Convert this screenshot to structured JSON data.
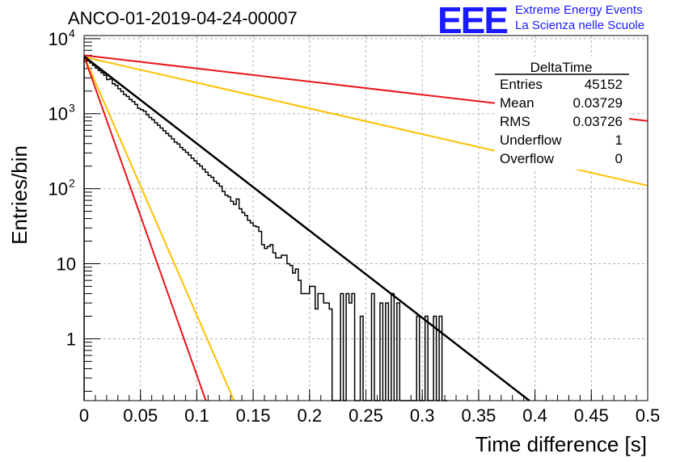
{
  "header": {
    "title": "ANCO-01-2019-04-24-00007",
    "logo_text": "EEE",
    "logo_line1": "Extreme Energy Events",
    "logo_line2": "La Scienza nelle Scuole"
  },
  "stats": {
    "name": "DeltaTime",
    "rows": [
      {
        "label": "Entries",
        "value": "45152"
      },
      {
        "label": "Mean",
        "value": "0.03729"
      },
      {
        "label": "RMS",
        "value": "0.03726"
      },
      {
        "label": "Underflow",
        "value": "1"
      },
      {
        "label": "Overflow",
        "value": "0"
      }
    ]
  },
  "colors": {
    "hist": "#000000",
    "red": "#e8141a",
    "orange": "#ffc000",
    "logo": "#1a1aff"
  },
  "chart_data": {
    "type": "line",
    "title": "ANCO-01-2019-04-24-00007",
    "xlabel": "Time difference [s]",
    "ylabel": "Entries/bin",
    "xlim": [
      0,
      0.5
    ],
    "ylim": [
      0.15,
      11000
    ],
    "yscale": "log",
    "grid": true,
    "xticks": [
      "0",
      "0.05",
      "0.1",
      "0.15",
      "0.2",
      "0.25",
      "0.3",
      "0.35",
      "0.4",
      "0.45",
      "0.5"
    ],
    "yticks": [
      {
        "value": 10000,
        "label": "10",
        "sup": "4"
      },
      {
        "value": 1000,
        "label": "10",
        "sup": "3"
      },
      {
        "value": 100,
        "label": "10",
        "sup": "2"
      },
      {
        "value": 10,
        "label": "10",
        "sup": ""
      },
      {
        "value": 1,
        "label": "1",
        "sup": ""
      }
    ],
    "histogram": {
      "bin_width": 0.0025,
      "start": 0,
      "values": [
        5600,
        5100,
        4750,
        4400,
        4050,
        3750,
        3500,
        3250,
        2850,
        2900,
        2500,
        2380,
        2150,
        1980,
        1800,
        1700,
        1550,
        1450,
        1330,
        1180,
        1130,
        1080,
        970,
        890,
        830,
        760,
        700,
        645,
        592,
        545,
        505,
        462,
        418,
        395,
        355,
        330,
        305,
        282,
        255,
        235,
        215,
        200,
        182,
        166,
        150,
        142,
        126,
        118,
        108,
        92,
        82,
        78,
        68,
        62,
        73,
        54,
        48,
        44,
        38,
        35,
        32,
        31,
        27,
        18,
        16,
        17,
        18,
        14,
        12,
        12,
        13,
        13,
        10,
        9.5,
        7.5,
        8.5,
        6,
        4,
        4,
        4,
        5,
        5,
        2.5,
        4,
        4,
        3,
        3,
        2.5,
        0.1,
        0.1,
        0.1,
        4,
        0.1,
        4,
        3,
        4,
        0.1,
        0.1,
        2,
        0.1,
        0.1,
        0.1,
        4,
        0.1,
        0.1,
        3,
        0.1,
        3,
        0.1,
        4,
        0.1,
        3,
        0.1,
        0.1,
        0.1,
        0.1,
        0.1,
        0.1,
        2,
        0.1,
        0.1,
        2,
        0.1,
        0.1,
        2,
        0.1,
        2,
        0.1,
        0.1
      ]
    },
    "fit": {
      "points": [
        [
          0,
          5800
        ],
        [
          0.395,
          0.15
        ]
      ]
    },
    "curves": [
      {
        "color": "red",
        "points": [
          [
            0,
            6000
          ],
          [
            0.5,
            800
          ]
        ]
      },
      {
        "color": "orange",
        "points": [
          [
            0,
            5700
          ],
          [
            0.5,
            110
          ]
        ]
      },
      {
        "color": "orange",
        "points": [
          [
            0,
            5800
          ],
          [
            0.133,
            0.15
          ]
        ]
      },
      {
        "color": "red",
        "points": [
          [
            0,
            5800
          ],
          [
            0.108,
            0.15
          ]
        ]
      }
    ]
  }
}
